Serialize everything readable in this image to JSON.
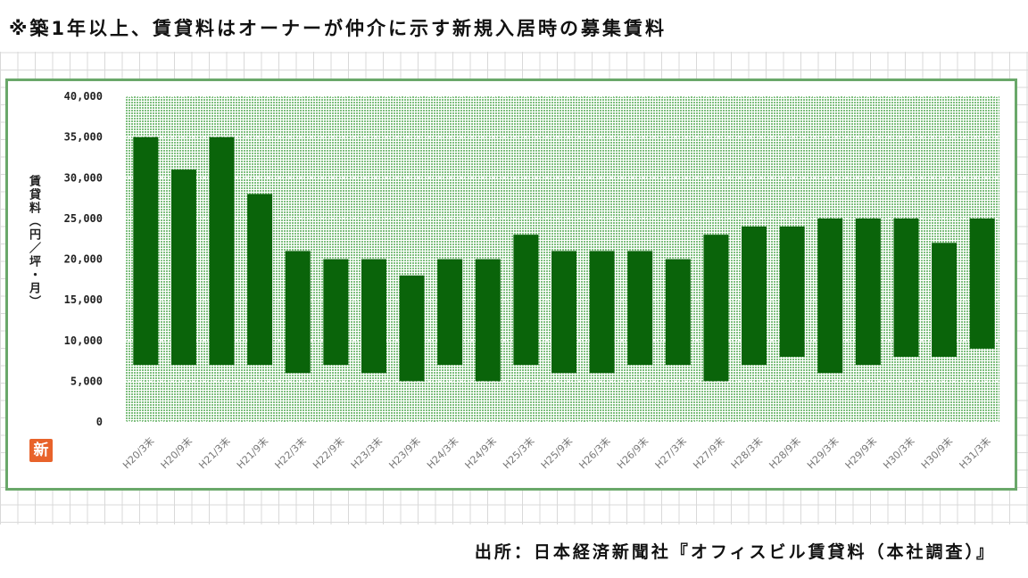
{
  "header": {
    "note": "※築1年以上、賃貸料はオーナーが仲介に示す新規入居時の募集賃料"
  },
  "footer": {
    "source": "出所：日本経済新聞社『オフィスビル賃貸料（本社調査）』"
  },
  "logo": {
    "text": "新"
  },
  "chart_data": {
    "type": "bar",
    "subtype": "floating-range",
    "ylabel": "賃貸料（円／坪・月）",
    "ylim": [
      0,
      40000
    ],
    "yticks": [
      "0",
      "5,000",
      "10,000",
      "15,000",
      "20,000",
      "25,000",
      "30,000",
      "35,000",
      "40,000"
    ],
    "grid": true,
    "bar_color": "#0a640a",
    "plot_bg": "#9fce9f",
    "categories": [
      "H20/3末",
      "H20/9末",
      "H21/3末",
      "H21/9末",
      "H22/3末",
      "H22/9末",
      "H23/3末",
      "H23/9末",
      "H24/3末",
      "H24/9末",
      "H25/3末",
      "H25/9末",
      "H26/3末",
      "H26/9末",
      "H27/3末",
      "H27/9末",
      "H28/3末",
      "H28/9末",
      "H29/3末",
      "H29/9末",
      "H30/3末",
      "H30/9末",
      "H31/3末"
    ],
    "low": [
      7000,
      7000,
      7000,
      7000,
      6000,
      7000,
      6000,
      5000,
      7000,
      5000,
      7000,
      6000,
      6000,
      7000,
      7000,
      5000,
      7000,
      8000,
      6000,
      7000,
      8000,
      8000,
      9000
    ],
    "high": [
      35000,
      31000,
      35000,
      28000,
      21000,
      20000,
      20000,
      18000,
      20000,
      20000,
      23000,
      21000,
      21000,
      21000,
      20000,
      23000,
      24000,
      24000,
      25000,
      25000,
      25000,
      22000,
      25000
    ]
  }
}
